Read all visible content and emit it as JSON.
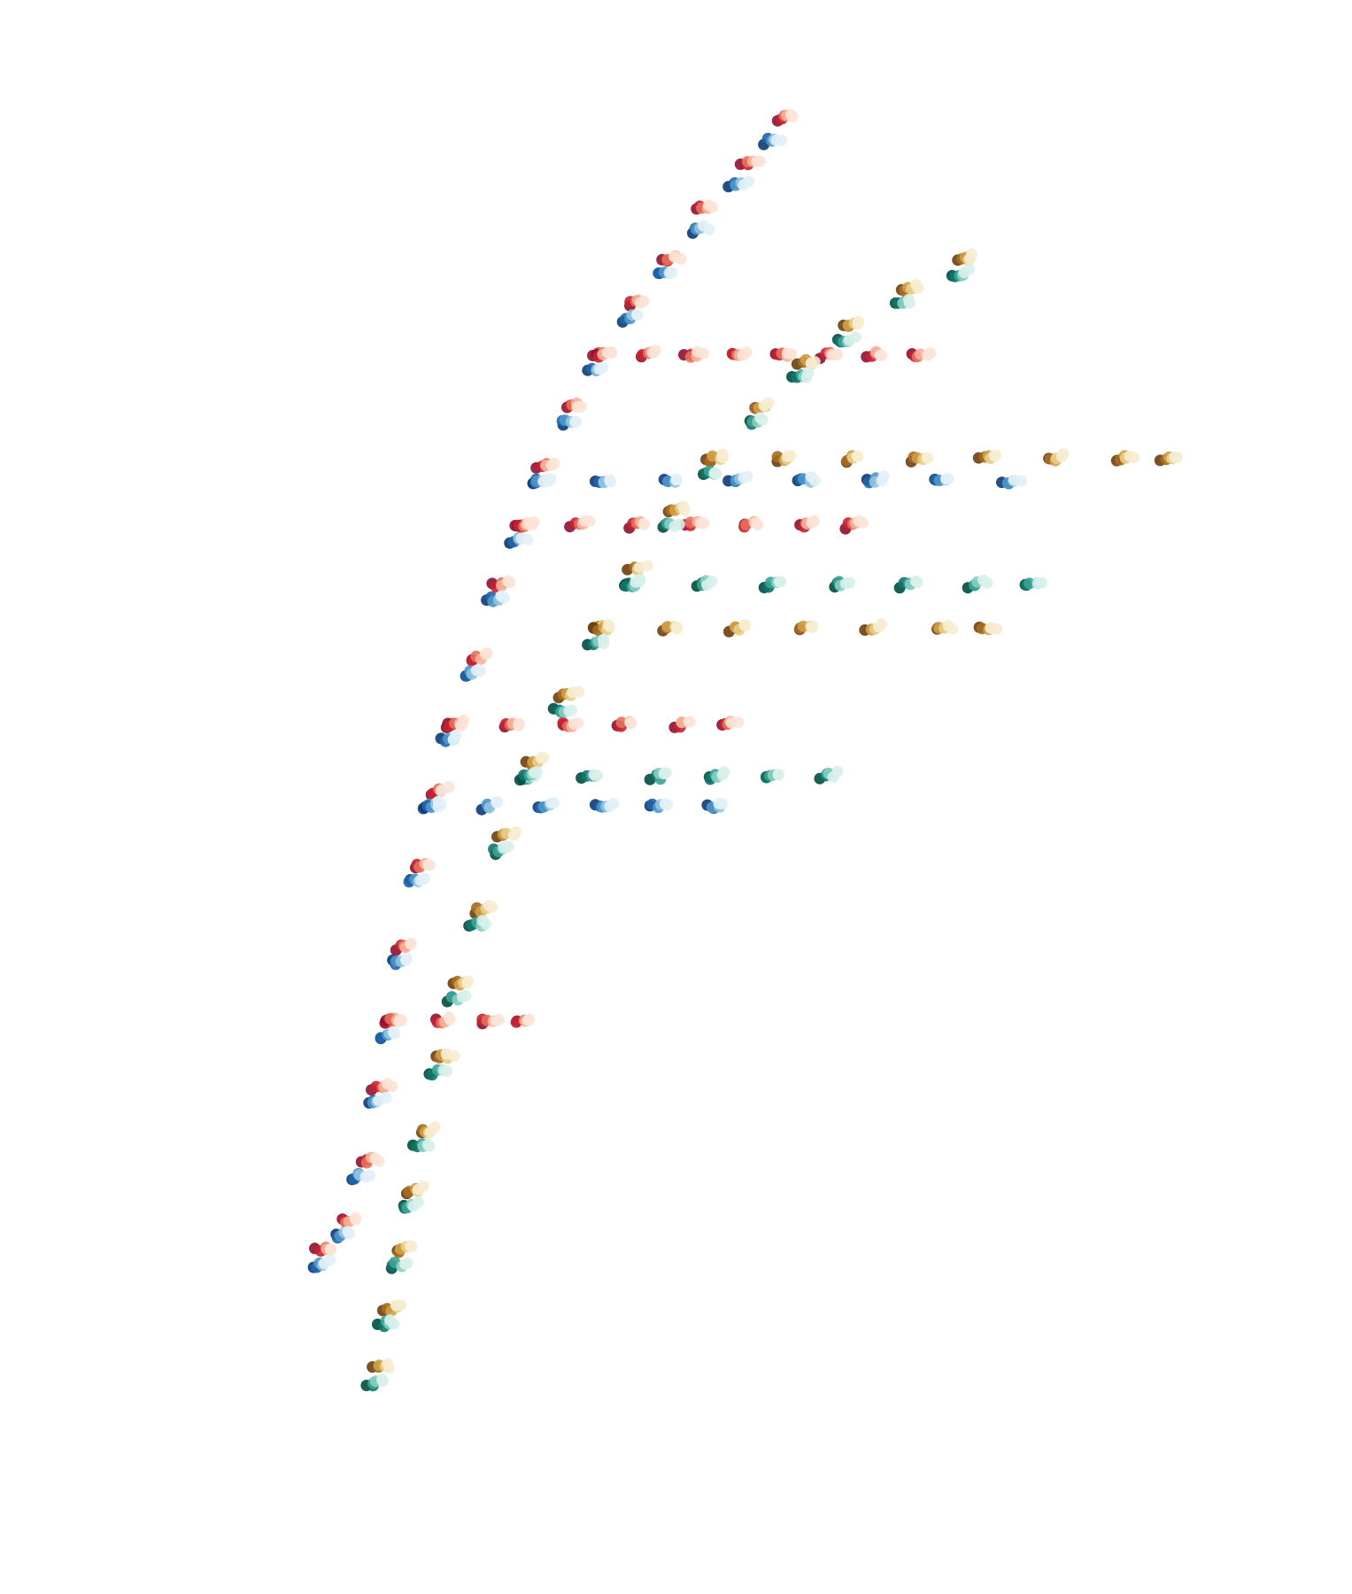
{
  "chart_data": {
    "type": "scatter",
    "title": "",
    "xlabel": "",
    "ylabel": "",
    "axes_visible": false,
    "grid": false,
    "legend": "none",
    "xlim": [
      0,
      1
    ],
    "ylim": [
      0,
      1
    ],
    "color_families": {
      "red": [
        "#8f0f2f",
        "#c52333",
        "#e8705a",
        "#f6b39a",
        "#fbe3d6"
      ],
      "blue": [
        "#0b3b74",
        "#1f66aa",
        "#4e97cb",
        "#93c3e0",
        "#e2eff7"
      ],
      "brown": [
        "#6c3f0e",
        "#a76b20",
        "#cfa046",
        "#e7ce8a",
        "#f6ecd0"
      ],
      "teal": [
        "#004c40",
        "#0f7669",
        "#3ea395",
        "#86cfc2",
        "#d8f0ea"
      ]
    },
    "series": [
      {
        "family": "red",
        "points": [
          [
            0.155,
            0.19
          ],
          [
            0.175,
            0.21
          ],
          [
            0.195,
            0.25
          ],
          [
            0.205,
            0.3
          ],
          [
            0.215,
            0.345
          ],
          [
            0.225,
            0.395
          ],
          [
            0.24,
            0.45
          ],
          [
            0.255,
            0.5
          ],
          [
            0.27,
            0.545
          ],
          [
            0.29,
            0.59
          ],
          [
            0.31,
            0.64
          ],
          [
            0.33,
            0.68
          ],
          [
            0.35,
            0.72
          ],
          [
            0.375,
            0.76
          ],
          [
            0.4,
            0.795
          ],
          [
            0.43,
            0.83
          ],
          [
            0.46,
            0.86
          ],
          [
            0.49,
            0.895
          ],
          [
            0.53,
            0.925
          ],
          [
            0.56,
            0.955
          ]
        ]
      },
      {
        "family": "red",
        "points": [
          [
            0.4,
            0.795
          ],
          [
            0.44,
            0.795
          ],
          [
            0.48,
            0.795
          ],
          [
            0.52,
            0.795
          ],
          [
            0.56,
            0.795
          ],
          [
            0.6,
            0.795
          ],
          [
            0.64,
            0.795
          ],
          [
            0.68,
            0.795
          ]
        ]
      },
      {
        "family": "red",
        "points": [
          [
            0.33,
            0.68
          ],
          [
            0.38,
            0.68
          ],
          [
            0.43,
            0.68
          ],
          [
            0.48,
            0.68
          ],
          [
            0.53,
            0.68
          ],
          [
            0.58,
            0.68
          ],
          [
            0.62,
            0.68
          ]
        ]
      },
      {
        "family": "red",
        "points": [
          [
            0.27,
            0.545
          ],
          [
            0.32,
            0.545
          ],
          [
            0.37,
            0.545
          ],
          [
            0.42,
            0.545
          ],
          [
            0.47,
            0.545
          ],
          [
            0.51,
            0.545
          ]
        ]
      },
      {
        "family": "red",
        "points": [
          [
            0.215,
            0.345
          ],
          [
            0.26,
            0.345
          ],
          [
            0.3,
            0.345
          ],
          [
            0.33,
            0.345
          ]
        ]
      },
      {
        "family": "blue",
        "points": [
          [
            0.15,
            0.18
          ],
          [
            0.17,
            0.2
          ],
          [
            0.185,
            0.24
          ],
          [
            0.2,
            0.29
          ],
          [
            0.21,
            0.335
          ],
          [
            0.22,
            0.385
          ],
          [
            0.235,
            0.44
          ],
          [
            0.25,
            0.49
          ],
          [
            0.265,
            0.535
          ],
          [
            0.285,
            0.58
          ],
          [
            0.305,
            0.63
          ],
          [
            0.325,
            0.67
          ],
          [
            0.345,
            0.71
          ],
          [
            0.37,
            0.75
          ],
          [
            0.395,
            0.785
          ],
          [
            0.425,
            0.82
          ],
          [
            0.455,
            0.85
          ],
          [
            0.485,
            0.88
          ],
          [
            0.52,
            0.91
          ],
          [
            0.55,
            0.94
          ]
        ]
      },
      {
        "family": "blue",
        "points": [
          [
            0.345,
            0.71
          ],
          [
            0.4,
            0.71
          ],
          [
            0.46,
            0.71
          ],
          [
            0.52,
            0.71
          ],
          [
            0.58,
            0.71
          ],
          [
            0.64,
            0.71
          ],
          [
            0.7,
            0.71
          ],
          [
            0.76,
            0.71
          ]
        ]
      },
      {
        "family": "blue",
        "points": [
          [
            0.25,
            0.49
          ],
          [
            0.3,
            0.49
          ],
          [
            0.35,
            0.49
          ],
          [
            0.4,
            0.49
          ],
          [
            0.45,
            0.49
          ],
          [
            0.5,
            0.49
          ]
        ]
      },
      {
        "family": "brown",
        "points": [
          [
            0.205,
            0.11
          ],
          [
            0.215,
            0.15
          ],
          [
            0.225,
            0.19
          ],
          [
            0.235,
            0.23
          ],
          [
            0.245,
            0.27
          ],
          [
            0.26,
            0.32
          ],
          [
            0.275,
            0.37
          ],
          [
            0.295,
            0.42
          ],
          [
            0.315,
            0.47
          ],
          [
            0.34,
            0.52
          ],
          [
            0.37,
            0.565
          ],
          [
            0.4,
            0.61
          ],
          [
            0.43,
            0.65
          ],
          [
            0.465,
            0.69
          ],
          [
            0.5,
            0.725
          ],
          [
            0.54,
            0.76
          ],
          [
            0.58,
            0.79
          ],
          [
            0.62,
            0.815
          ],
          [
            0.67,
            0.84
          ],
          [
            0.72,
            0.86
          ]
        ]
      },
      {
        "family": "brown",
        "points": [
          [
            0.5,
            0.725
          ],
          [
            0.56,
            0.725
          ],
          [
            0.62,
            0.725
          ],
          [
            0.68,
            0.725
          ],
          [
            0.74,
            0.725
          ],
          [
            0.8,
            0.725
          ],
          [
            0.86,
            0.725
          ],
          [
            0.9,
            0.725
          ]
        ]
      },
      {
        "family": "brown",
        "points": [
          [
            0.4,
            0.61
          ],
          [
            0.46,
            0.61
          ],
          [
            0.52,
            0.61
          ],
          [
            0.58,
            0.61
          ],
          [
            0.64,
            0.61
          ],
          [
            0.7,
            0.61
          ],
          [
            0.74,
            0.61
          ]
        ]
      },
      {
        "family": "teal",
        "points": [
          [
            0.2,
            0.1
          ],
          [
            0.21,
            0.14
          ],
          [
            0.22,
            0.18
          ],
          [
            0.23,
            0.22
          ],
          [
            0.24,
            0.26
          ],
          [
            0.255,
            0.31
          ],
          [
            0.27,
            0.36
          ],
          [
            0.29,
            0.41
          ],
          [
            0.31,
            0.46
          ],
          [
            0.335,
            0.51
          ],
          [
            0.365,
            0.555
          ],
          [
            0.395,
            0.6
          ],
          [
            0.425,
            0.64
          ],
          [
            0.46,
            0.68
          ],
          [
            0.495,
            0.715
          ],
          [
            0.535,
            0.75
          ],
          [
            0.575,
            0.78
          ],
          [
            0.615,
            0.805
          ],
          [
            0.665,
            0.83
          ],
          [
            0.715,
            0.85
          ]
        ]
      },
      {
        "family": "teal",
        "points": [
          [
            0.425,
            0.64
          ],
          [
            0.49,
            0.64
          ],
          [
            0.55,
            0.64
          ],
          [
            0.61,
            0.64
          ],
          [
            0.67,
            0.64
          ],
          [
            0.73,
            0.64
          ],
          [
            0.78,
            0.64
          ]
        ]
      },
      {
        "family": "teal",
        "points": [
          [
            0.335,
            0.51
          ],
          [
            0.39,
            0.51
          ],
          [
            0.45,
            0.51
          ],
          [
            0.5,
            0.51
          ],
          [
            0.55,
            0.51
          ],
          [
            0.6,
            0.51
          ]
        ]
      }
    ]
  }
}
